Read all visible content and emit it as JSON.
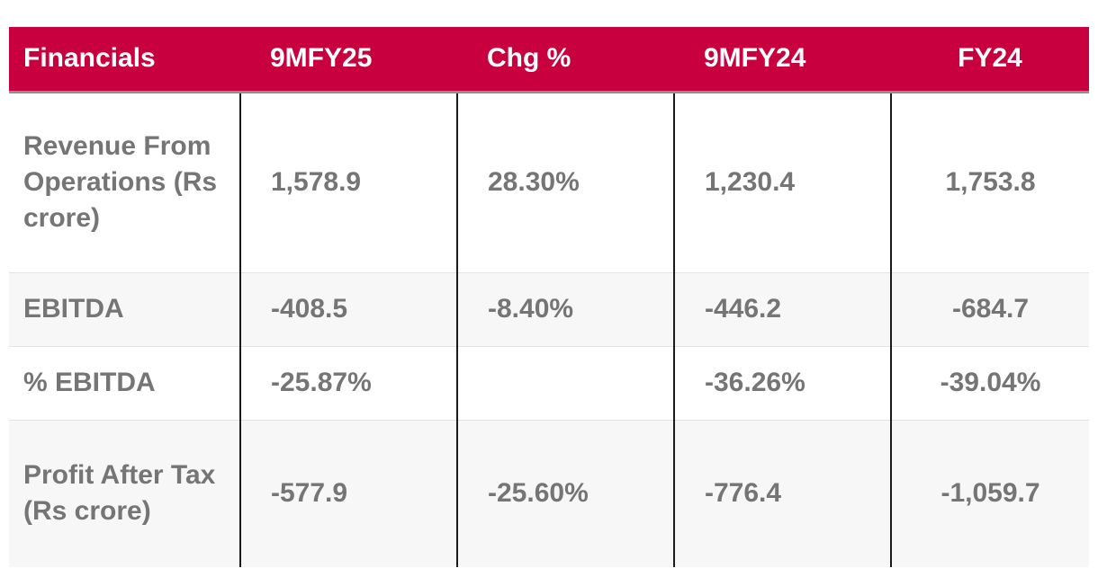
{
  "table": {
    "headers": [
      "Financials",
      "9MFY25",
      "Chg %",
      "9MFY24",
      "FY24"
    ],
    "rows": [
      [
        "Revenue From Operations (Rs crore)",
        "1,578.9",
        "28.30%",
        "1,230.4",
        "1,753.8"
      ],
      [
        "EBITDA",
        "-408.5",
        "-8.40%",
        "-446.2",
        "-684.7"
      ],
      [
        "% EBITDA",
        "-25.87%",
        "",
        "-36.26%",
        "-39.04%"
      ],
      [
        "Profit After Tax (Rs crore)",
        "-577.9",
        "-25.60%",
        "-776.4",
        "-1,059.7"
      ]
    ]
  },
  "colors": {
    "header_bg": "#c8003f",
    "header_text": "#ffffff",
    "body_text": "#757575",
    "alt_row_bg": "#f7f7f7"
  }
}
